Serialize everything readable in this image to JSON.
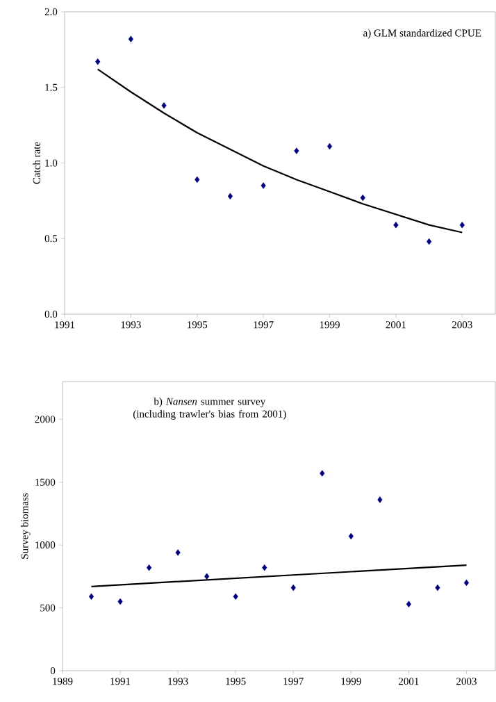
{
  "chart_data": [
    {
      "type": "scatter",
      "ylabel": "Catch rate",
      "annotations": [
        "a) GLM standardized CPUE"
      ],
      "x": [
        1992,
        1993,
        1994,
        1995,
        1996,
        1997,
        1998,
        1999,
        2000,
        2001,
        2002,
        2003
      ],
      "series": [
        {
          "color": "#000080",
          "marker": "diamond",
          "values": [
            1.67,
            1.82,
            1.38,
            0.89,
            0.78,
            0.85,
            1.08,
            1.11,
            0.77,
            0.59,
            0.48,
            0.59
          ]
        },
        {
          "type": "line",
          "color": "#000000",
          "marker": "none",
          "line_style": "solid",
          "values": [
            1.62,
            1.47,
            1.33,
            1.2,
            1.09,
            0.98,
            0.89,
            0.81,
            0.73,
            0.66,
            0.59,
            0.54
          ]
        }
      ],
      "xlim": [
        1991,
        2004
      ],
      "xticks": [
        1991,
        1993,
        1995,
        1997,
        1999,
        2001,
        2003
      ],
      "ylim": [
        0,
        2
      ],
      "yticks": [
        {
          "value": 0,
          "label": "0.0"
        },
        {
          "value": 0.5,
          "label": "0.5"
        },
        {
          "value": 1,
          "label": "1.0"
        },
        {
          "value": 1.5,
          "label": "1.5"
        },
        {
          "value": 2,
          "label": "2.0"
        }
      ],
      "grid": false
    },
    {
      "type": "scatter",
      "ylabel": "Survey biomass",
      "annotations": [
        "b) *Nansen*  summer survey (including trawler's bias from 2001)"
      ],
      "x": [
        1990,
        1991,
        1992,
        1993,
        1994,
        1995,
        1996,
        1997,
        1998,
        1999,
        2000,
        2001,
        2002,
        2003
      ],
      "series": [
        {
          "color": "#000080",
          "marker": "diamond",
          "values": [
            590,
            550,
            820,
            940,
            750,
            590,
            820,
            660,
            1570,
            1070,
            1360,
            530,
            660,
            700
          ]
        },
        {
          "type": "line",
          "color": "#000000",
          "marker": "none",
          "line_style": "solid",
          "x": [
            1990,
            2003
          ],
          "values": [
            670,
            840
          ]
        }
      ],
      "xlim": [
        1989,
        2004
      ],
      "xticks": [
        1989,
        1991,
        1993,
        1995,
        1997,
        1999,
        2001,
        2003
      ],
      "ylim": [
        0,
        2300
      ],
      "yticks": [
        0,
        500,
        1000,
        1500,
        2000
      ],
      "grid": false
    }
  ]
}
